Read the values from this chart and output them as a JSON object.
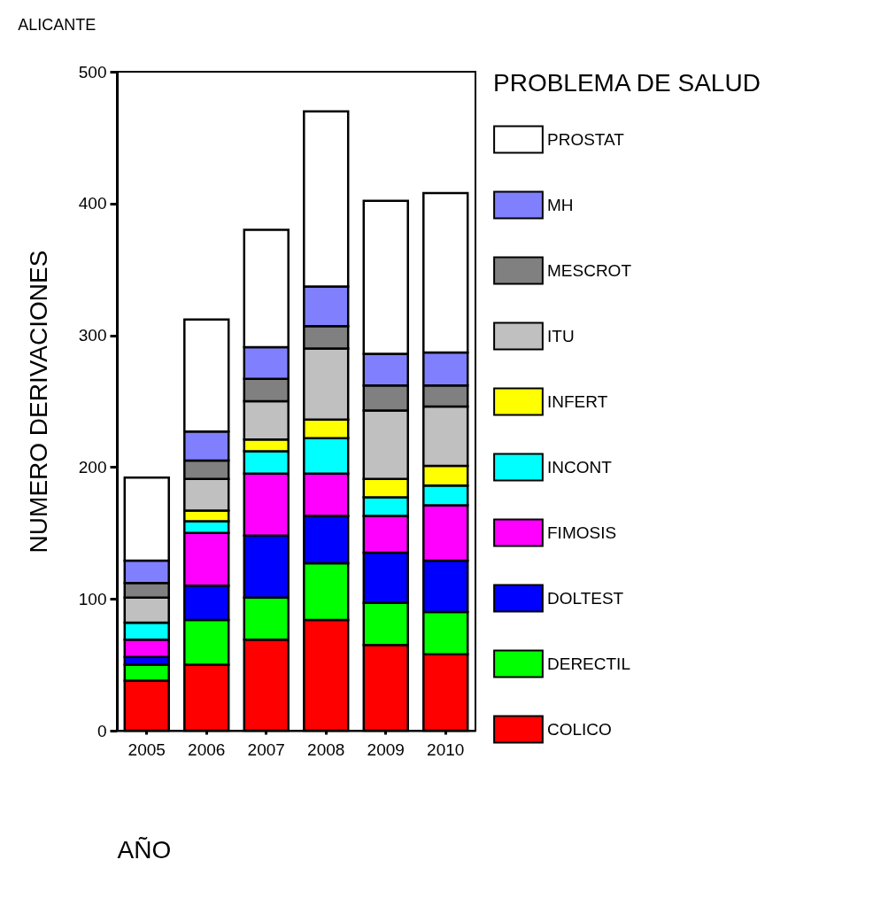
{
  "chart_data": {
    "type": "bar",
    "title": "ALICANTE",
    "xlabel": "AÑO",
    "ylabel": "NUMERO DERIVACIONES",
    "legend_title": "PROBLEMA DE SALUD",
    "legend": "right",
    "stacked": true,
    "grid": false,
    "categories": [
      "2005",
      "2006",
      "2007",
      "2008",
      "2009",
      "2010"
    ],
    "ylim": [
      0,
      500
    ],
    "yticks": [
      0,
      100,
      200,
      300,
      400,
      500
    ],
    "series": [
      {
        "name": "COLICO",
        "color": "#ff0000",
        "values": [
          38,
          50,
          69,
          84,
          65,
          58
        ]
      },
      {
        "name": "DERECTIL",
        "color": "#00ff00",
        "values": [
          12,
          34,
          32,
          43,
          32,
          32
        ]
      },
      {
        "name": "DOLTEST",
        "color": "#0000ff",
        "values": [
          6,
          26,
          47,
          36,
          38,
          39
        ]
      },
      {
        "name": "FIMOSIS",
        "color": "#ff00ff",
        "values": [
          13,
          40,
          47,
          32,
          28,
          42
        ]
      },
      {
        "name": "INCONT",
        "color": "#00ffff",
        "values": [
          13,
          9,
          17,
          27,
          14,
          15
        ]
      },
      {
        "name": "INFERT",
        "color": "#ffff00",
        "values": [
          0,
          8,
          9,
          14,
          14,
          15
        ]
      },
      {
        "name": "ITU",
        "color": "#c0c0c0",
        "values": [
          19,
          24,
          29,
          54,
          52,
          45
        ]
      },
      {
        "name": "MESCROT",
        "color": "#808080",
        "values": [
          11,
          14,
          17,
          17,
          19,
          16
        ]
      },
      {
        "name": "MH",
        "color": "#8080ff",
        "values": [
          17,
          22,
          24,
          30,
          24,
          25
        ]
      },
      {
        "name": "PROSTAT",
        "color": "#ffffff",
        "values": [
          63,
          85,
          89,
          133,
          116,
          121
        ]
      }
    ]
  }
}
